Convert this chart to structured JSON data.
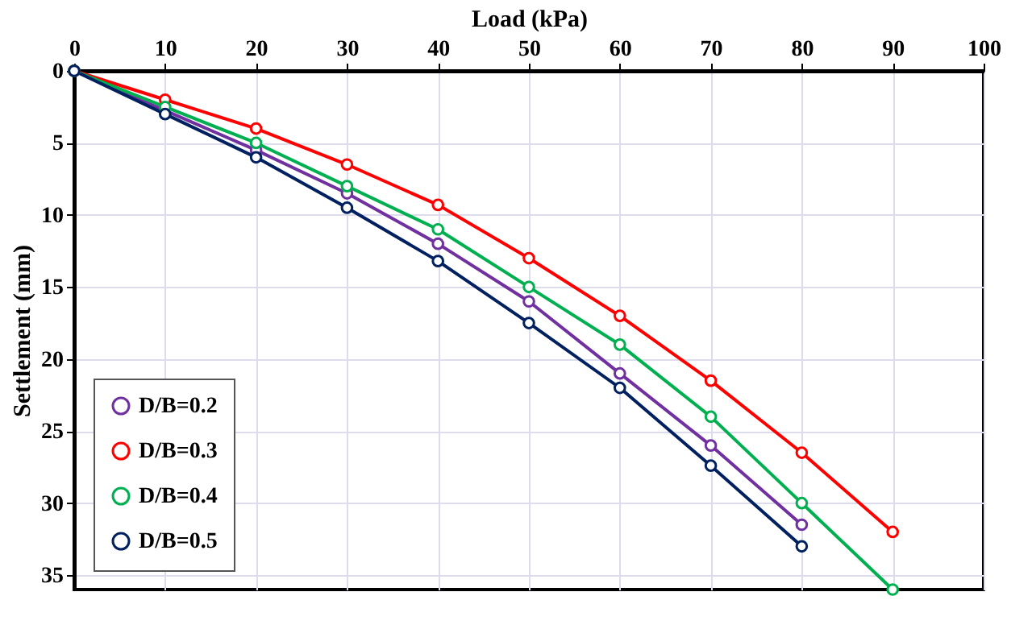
{
  "chart_data": {
    "type": "line",
    "xlabel": "Load (kPa)",
    "ylabel": "Settlement (mm)",
    "x": [
      0,
      10,
      20,
      30,
      40,
      50,
      60,
      70,
      80,
      90
    ],
    "xlim": [
      0,
      100
    ],
    "xticks": [
      0,
      10,
      20,
      30,
      40,
      50,
      60,
      70,
      80,
      90,
      100
    ],
    "ylim": [
      36,
      0
    ],
    "yticks": [
      0,
      5,
      10,
      15,
      20,
      25,
      30,
      35
    ],
    "grid": true,
    "legend": "bottom left",
    "marker": "circle",
    "line_style": "solid",
    "series": [
      {
        "name": "D/B=0.2",
        "color": "#7030a0",
        "values": [
          0,
          null,
          5.5,
          8.5,
          12,
          16,
          21,
          26,
          31.5,
          null
        ]
      },
      {
        "name": "D/B=0.3",
        "color": "#ff0000",
        "values": [
          0,
          2,
          4,
          6.5,
          9.3,
          13,
          17,
          21.5,
          26.5,
          32
        ]
      },
      {
        "name": "D/B=0.4",
        "color": "#00b050",
        "values": [
          0,
          2.5,
          5,
          8,
          11,
          15,
          19,
          24,
          30,
          36
        ]
      },
      {
        "name": "D/B=0.5",
        "color": "#002060",
        "values": [
          0,
          3,
          6,
          9.5,
          13.2,
          17.5,
          22,
          27.4,
          33,
          null
        ]
      }
    ]
  }
}
